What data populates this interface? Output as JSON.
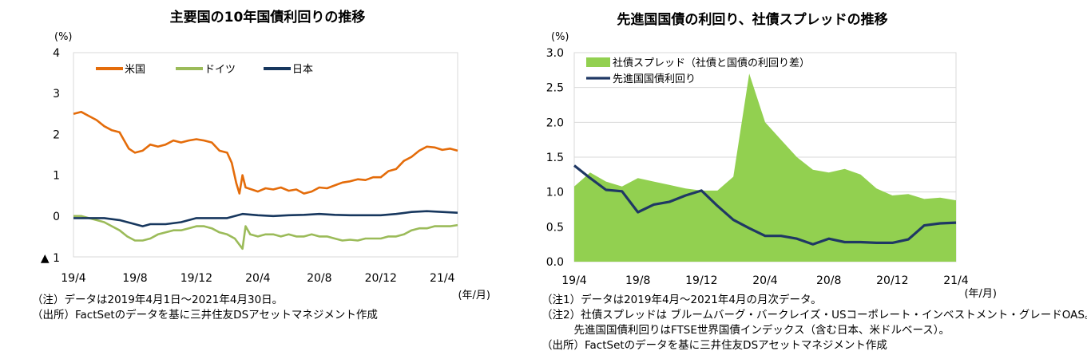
{
  "chart_data": [
    {
      "type": "line",
      "title": "主要国の10年国債利回りの推移",
      "ylabel": "(%)",
      "xlabel": "(年/月)",
      "ylim": [
        -1,
        4
      ],
      "yticks": [
        4,
        3,
        2,
        1,
        0
      ],
      "yticks_neg_label": "▲ 1",
      "ytick_labels": [
        "4",
        "3",
        "2",
        "1",
        "0"
      ],
      "xlim": [
        0,
        25
      ],
      "xticks": [
        {
          "x": 0,
          "label": "19/4"
        },
        {
          "x": 4,
          "label": "19/8"
        },
        {
          "x": 8,
          "label": "19/12"
        },
        {
          "x": 12,
          "label": "20/4"
        },
        {
          "x": 16,
          "label": "20/8"
        },
        {
          "x": 20,
          "label": "20/12"
        },
        {
          "x": 24,
          "label": "21/4"
        }
      ],
      "series": [
        {
          "name": "米国",
          "color": "#E46C0A",
          "points": [
            [
              0,
              2.5
            ],
            [
              0.5,
              2.55
            ],
            [
              1,
              2.45
            ],
            [
              1.5,
              2.35
            ],
            [
              2,
              2.2
            ],
            [
              2.5,
              2.1
            ],
            [
              3,
              2.05
            ],
            [
              3.3,
              1.85
            ],
            [
              3.6,
              1.65
            ],
            [
              4,
              1.55
            ],
            [
              4.5,
              1.6
            ],
            [
              5,
              1.75
            ],
            [
              5.5,
              1.7
            ],
            [
              6,
              1.75
            ],
            [
              6.5,
              1.85
            ],
            [
              7,
              1.8
            ],
            [
              7.5,
              1.85
            ],
            [
              8,
              1.88
            ],
            [
              8.5,
              1.85
            ],
            [
              9,
              1.8
            ],
            [
              9.5,
              1.6
            ],
            [
              10,
              1.55
            ],
            [
              10.3,
              1.3
            ],
            [
              10.6,
              0.8
            ],
            [
              10.8,
              0.55
            ],
            [
              11,
              1.0
            ],
            [
              11.2,
              0.7
            ],
            [
              11.6,
              0.65
            ],
            [
              12,
              0.6
            ],
            [
              12.5,
              0.68
            ],
            [
              13,
              0.65
            ],
            [
              13.5,
              0.7
            ],
            [
              14,
              0.62
            ],
            [
              14.5,
              0.65
            ],
            [
              15,
              0.55
            ],
            [
              15.5,
              0.6
            ],
            [
              16,
              0.7
            ],
            [
              16.5,
              0.68
            ],
            [
              17,
              0.75
            ],
            [
              17.5,
              0.82
            ],
            [
              18,
              0.85
            ],
            [
              18.5,
              0.9
            ],
            [
              19,
              0.88
            ],
            [
              19.5,
              0.95
            ],
            [
              20,
              0.95
            ],
            [
              20.5,
              1.1
            ],
            [
              21,
              1.15
            ],
            [
              21.5,
              1.35
            ],
            [
              22,
              1.45
            ],
            [
              22.5,
              1.6
            ],
            [
              23,
              1.7
            ],
            [
              23.5,
              1.68
            ],
            [
              24,
              1.62
            ],
            [
              24.5,
              1.65
            ],
            [
              25,
              1.6
            ]
          ]
        },
        {
          "name": "ドイツ",
          "color": "#9BBB59",
          "points": [
            [
              0,
              0
            ],
            [
              0.5,
              0.0
            ],
            [
              1,
              -0.05
            ],
            [
              1.5,
              -0.1
            ],
            [
              2,
              -0.15
            ],
            [
              2.5,
              -0.25
            ],
            [
              3,
              -0.35
            ],
            [
              3.5,
              -0.5
            ],
            [
              4,
              -0.6
            ],
            [
              4.5,
              -0.6
            ],
            [
              5,
              -0.55
            ],
            [
              5.5,
              -0.45
            ],
            [
              6,
              -0.4
            ],
            [
              6.5,
              -0.35
            ],
            [
              7,
              -0.35
            ],
            [
              7.5,
              -0.3
            ],
            [
              8,
              -0.25
            ],
            [
              8.5,
              -0.25
            ],
            [
              9,
              -0.3
            ],
            [
              9.5,
              -0.4
            ],
            [
              10,
              -0.45
            ],
            [
              10.5,
              -0.55
            ],
            [
              11,
              -0.8
            ],
            [
              11.2,
              -0.25
            ],
            [
              11.5,
              -0.45
            ],
            [
              12,
              -0.5
            ],
            [
              12.5,
              -0.45
            ],
            [
              13,
              -0.45
            ],
            [
              13.5,
              -0.5
            ],
            [
              14,
              -0.45
            ],
            [
              14.5,
              -0.5
            ],
            [
              15,
              -0.5
            ],
            [
              15.5,
              -0.45
            ],
            [
              16,
              -0.5
            ],
            [
              16.5,
              -0.5
            ],
            [
              17,
              -0.55
            ],
            [
              17.5,
              -0.6
            ],
            [
              18,
              -0.58
            ],
            [
              18.5,
              -0.6
            ],
            [
              19,
              -0.55
            ],
            [
              19.5,
              -0.55
            ],
            [
              20,
              -0.55
            ],
            [
              20.5,
              -0.5
            ],
            [
              21,
              -0.5
            ],
            [
              21.5,
              -0.45
            ],
            [
              22,
              -0.35
            ],
            [
              22.5,
              -0.3
            ],
            [
              23,
              -0.3
            ],
            [
              23.5,
              -0.25
            ],
            [
              24,
              -0.25
            ],
            [
              24.5,
              -0.25
            ],
            [
              25,
              -0.22
            ]
          ]
        },
        {
          "name": "日本",
          "color": "#17375E",
          "points": [
            [
              0,
              -0.05
            ],
            [
              1,
              -0.05
            ],
            [
              2,
              -0.05
            ],
            [
              3,
              -0.1
            ],
            [
              4,
              -0.2
            ],
            [
              4.5,
              -0.25
            ],
            [
              5,
              -0.2
            ],
            [
              6,
              -0.2
            ],
            [
              7,
              -0.15
            ],
            [
              8,
              -0.05
            ],
            [
              9,
              -0.05
            ],
            [
              10,
              -0.05
            ],
            [
              11,
              0.05
            ],
            [
              12,
              0.02
            ],
            [
              13,
              0.0
            ],
            [
              14,
              0.02
            ],
            [
              15,
              0.03
            ],
            [
              16,
              0.05
            ],
            [
              17,
              0.03
            ],
            [
              18,
              0.02
            ],
            [
              19,
              0.02
            ],
            [
              20,
              0.02
            ],
            [
              21,
              0.05
            ],
            [
              22,
              0.1
            ],
            [
              23,
              0.12
            ],
            [
              24,
              0.1
            ],
            [
              25,
              0.08
            ]
          ]
        }
      ]
    },
    {
      "type": "area",
      "title": "先進国国債の利回り、社債スプレッドの推移",
      "ylabel": "(%)",
      "xlabel": "(年/月)",
      "ylim": [
        0,
        3
      ],
      "yticks": [
        0,
        0.5,
        1,
        1.5,
        2,
        2.5,
        3
      ],
      "ytick_labels": [
        "0.0",
        "0.5",
        "1.0",
        "1.5",
        "2.0",
        "2.5",
        "3.0"
      ],
      "xlim": [
        0,
        24
      ],
      "xticks": [
        {
          "x": 0,
          "label": "19/4"
        },
        {
          "x": 4,
          "label": "19/8"
        },
        {
          "x": 8,
          "label": "19/12"
        },
        {
          "x": 12,
          "label": "20/4"
        },
        {
          "x": 16,
          "label": "20/8"
        },
        {
          "x": 20,
          "label": "20/12"
        },
        {
          "x": 24,
          "label": "21/4"
        }
      ],
      "series": [
        {
          "name": "社債スプレッド（社債と国債の利回り差）",
          "type": "area",
          "color": "#92D050",
          "values": [
            1.08,
            1.28,
            1.15,
            1.08,
            1.2,
            1.15,
            1.1,
            1.05,
            1.02,
            1.02,
            1.22,
            2.7,
            2.0,
            1.75,
            1.5,
            1.32,
            1.28,
            1.33,
            1.25,
            1.05,
            0.95,
            0.97,
            0.9,
            0.92,
            0.88
          ]
        },
        {
          "name": "先進国国債利回り",
          "type": "line",
          "color": "#1F3864",
          "values": [
            1.38,
            1.2,
            1.03,
            1.01,
            0.71,
            0.82,
            0.86,
            0.95,
            1.02,
            0.8,
            0.6,
            0.48,
            0.37,
            0.37,
            0.33,
            0.25,
            0.33,
            0.28,
            0.28,
            0.27,
            0.27,
            0.32,
            0.52,
            0.55,
            0.56
          ]
        }
      ]
    }
  ],
  "notes_left": [
    "（注）データは2019年4月1日～2021年4月30日。",
    "（出所）FactSetのデータを基に三井住友DSアセットマネジメント作成"
  ],
  "notes_right": [
    "（注1）データは2019年4月～2021年4月の月次データ。",
    "（注2）社債スプレッドは ブルームバーグ・バークレイズ・USコーポレート・インベストメント・グレードOAS。",
    "　　　先進国国債利回りはFTSE世界国債インデックス（含む日本、米ドルベース）。",
    "（出所）FactSetのデータを基に三井住友DSアセットマネジメント作成"
  ]
}
